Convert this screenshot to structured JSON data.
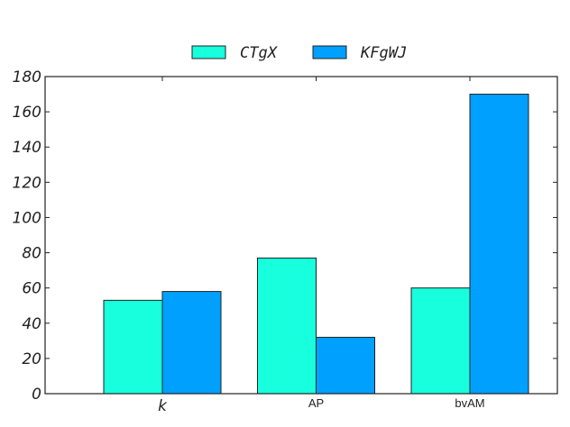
{
  "chart_data": {
    "type": "bar",
    "categories": [
      "k",
      "AP",
      "bvAM"
    ],
    "series": [
      {
        "name": "CTgX",
        "values": [
          53,
          77,
          60
        ],
        "color": "#17ffdd"
      },
      {
        "name": "KFgWJ",
        "values": [
          58,
          32,
          170
        ],
        "color": "#00a0ff"
      }
    ],
    "title": "",
    "xlabel": "",
    "ylabel": "",
    "ylim": [
      0,
      180
    ],
    "yticks": [
      "0",
      "20",
      "40",
      "60",
      "80",
      "100",
      "120",
      "140",
      "160",
      "180"
    ],
    "grid": false,
    "legend_position": "top-center"
  }
}
